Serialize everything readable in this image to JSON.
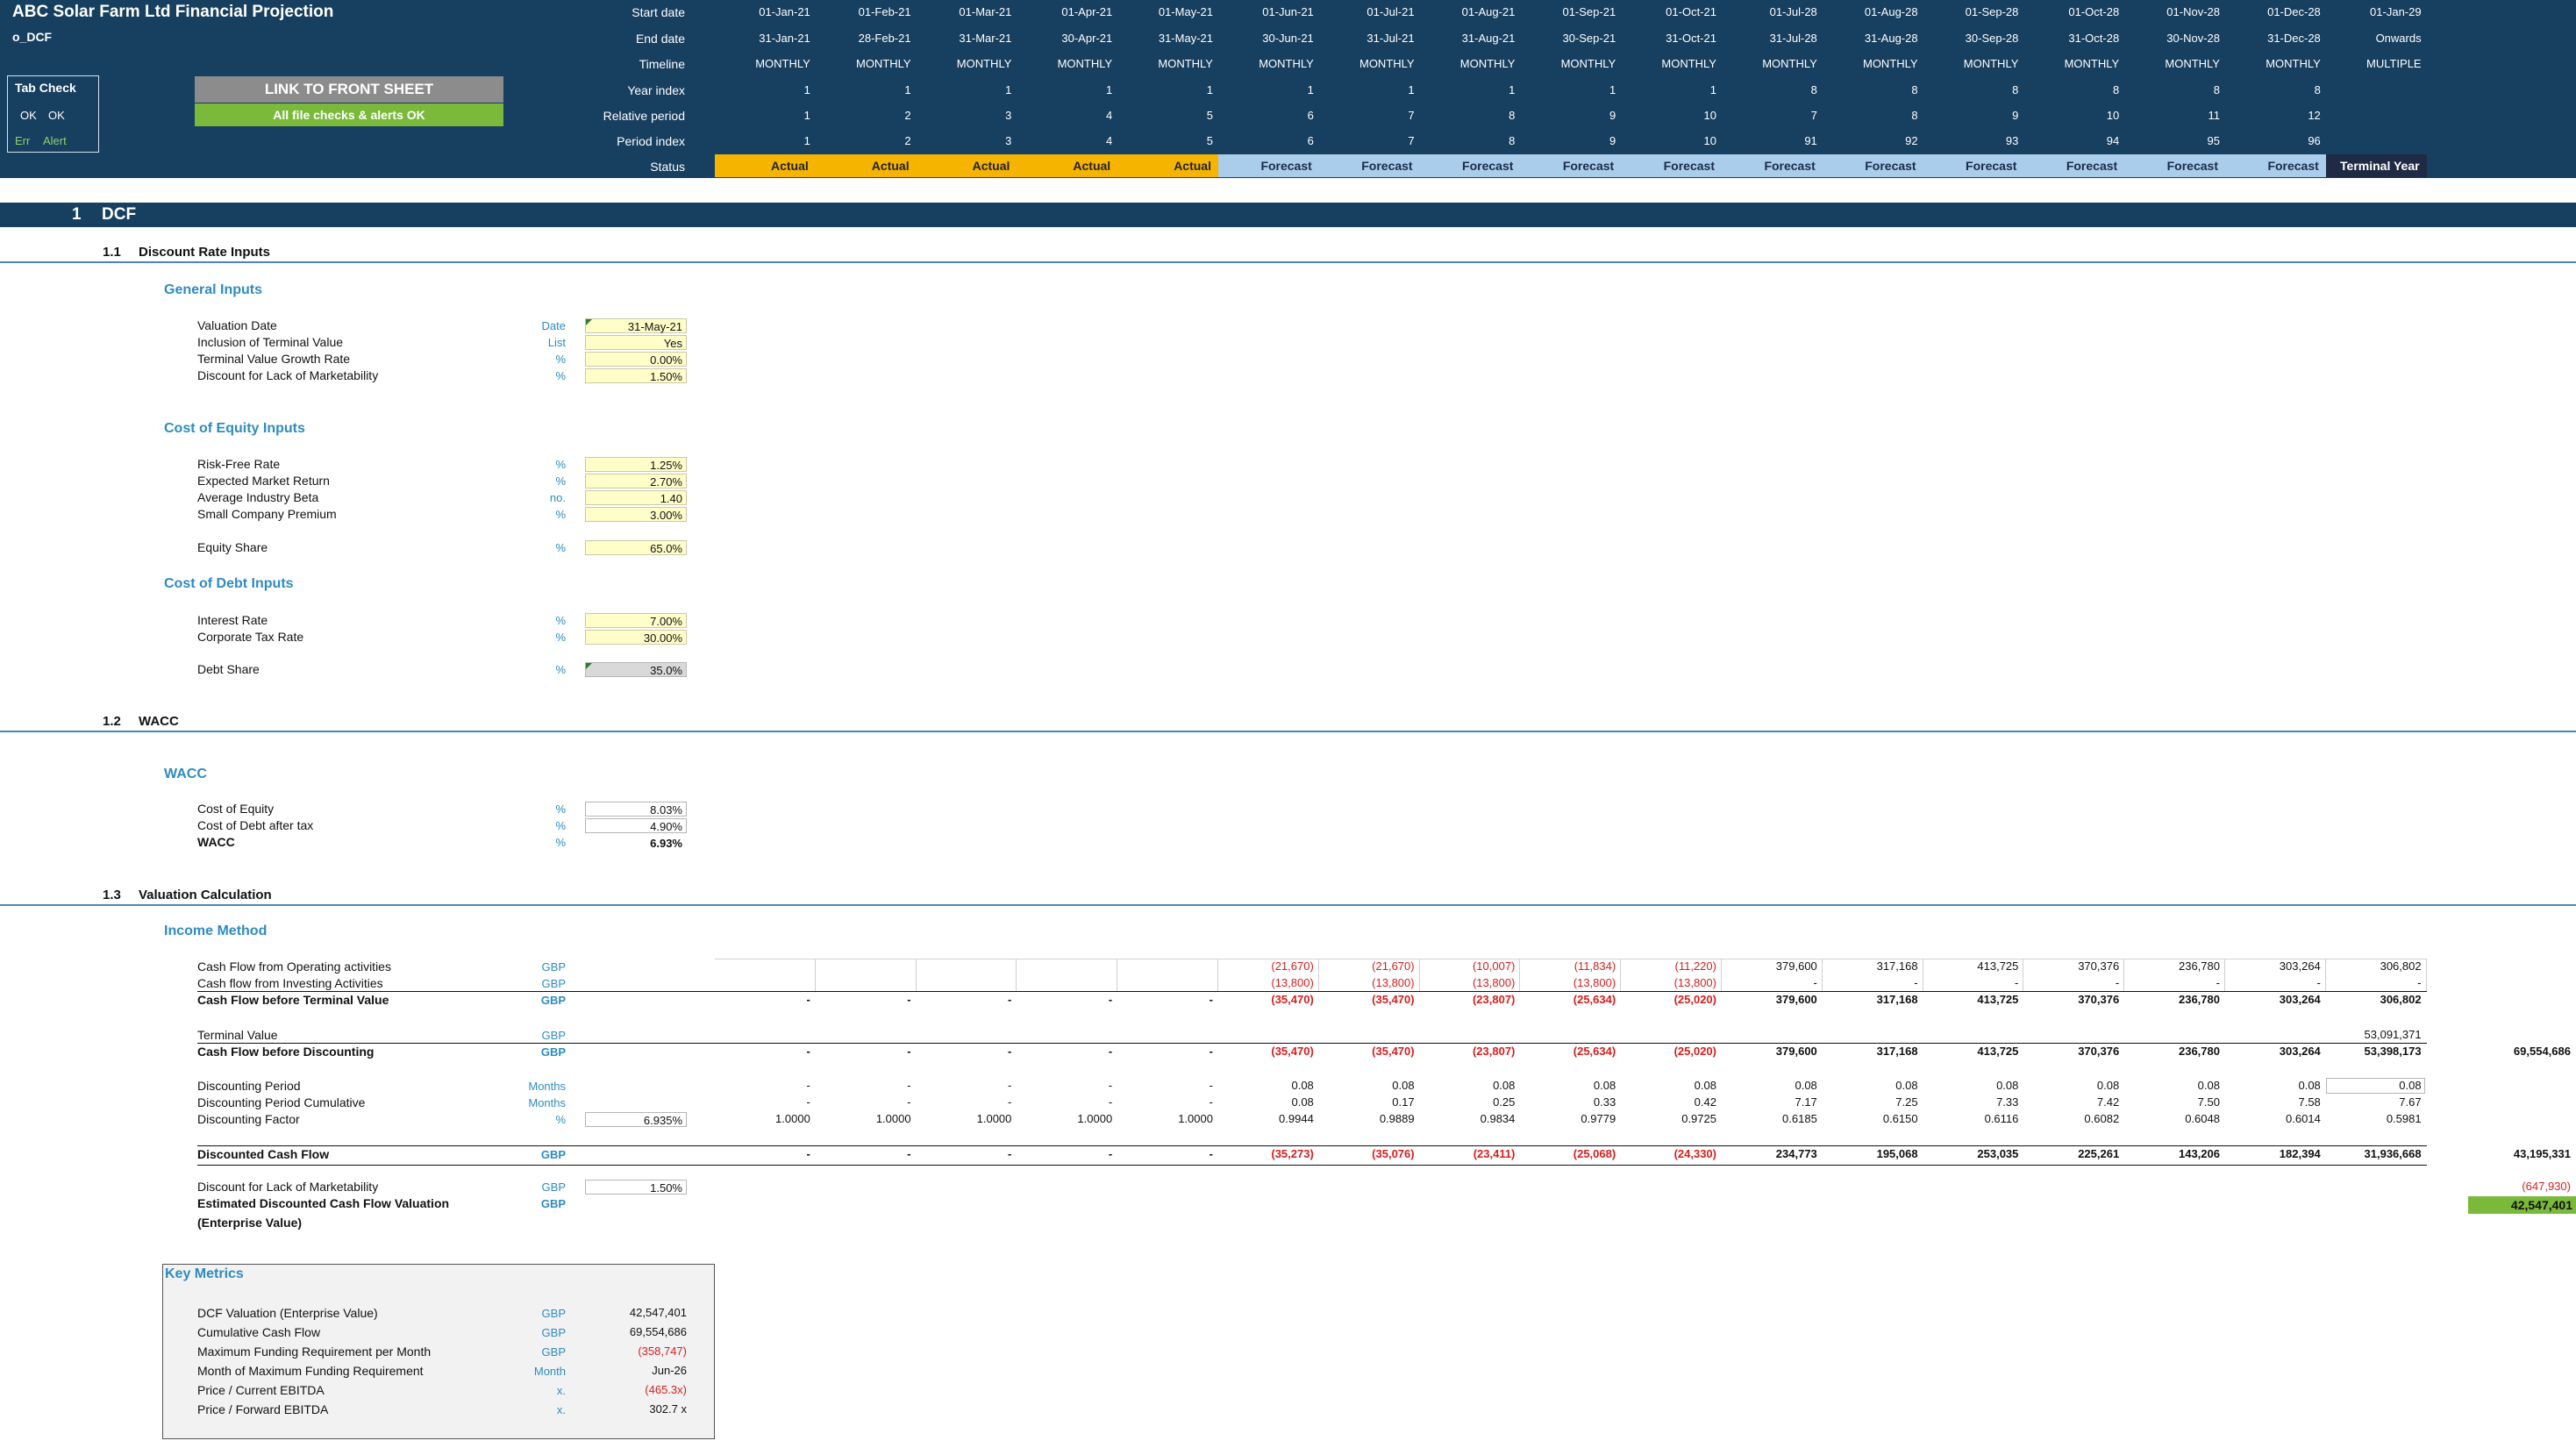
{
  "title": "ABC Solar Farm Ltd Financial Projection",
  "sheet_name": "o_DCF",
  "timeline_labels": {
    "start_date": "Start date",
    "end_date": "End date",
    "timeline": "Timeline",
    "year_index": "Year index",
    "relative_period": "Relative period",
    "period_index": "Period index",
    "status": "Status"
  },
  "columns": [
    {
      "start": "01-Jan-21",
      "end": "31-Jan-21",
      "timeline": "MONTHLY",
      "year": "1",
      "rel": "1",
      "period": "1",
      "status": "Actual"
    },
    {
      "start": "01-Feb-21",
      "end": "28-Feb-21",
      "timeline": "MONTHLY",
      "year": "1",
      "rel": "2",
      "period": "2",
      "status": "Actual"
    },
    {
      "start": "01-Mar-21",
      "end": "31-Mar-21",
      "timeline": "MONTHLY",
      "year": "1",
      "rel": "3",
      "period": "3",
      "status": "Actual"
    },
    {
      "start": "01-Apr-21",
      "end": "30-Apr-21",
      "timeline": "MONTHLY",
      "year": "1",
      "rel": "4",
      "period": "4",
      "status": "Actual"
    },
    {
      "start": "01-May-21",
      "end": "31-May-21",
      "timeline": "MONTHLY",
      "year": "1",
      "rel": "5",
      "period": "5",
      "status": "Actual"
    },
    {
      "start": "01-Jun-21",
      "end": "30-Jun-21",
      "timeline": "MONTHLY",
      "year": "1",
      "rel": "6",
      "period": "6",
      "status": "Forecast"
    },
    {
      "start": "01-Jul-21",
      "end": "31-Jul-21",
      "timeline": "MONTHLY",
      "year": "1",
      "rel": "7",
      "period": "7",
      "status": "Forecast"
    },
    {
      "start": "01-Aug-21",
      "end": "31-Aug-21",
      "timeline": "MONTHLY",
      "year": "1",
      "rel": "8",
      "period": "8",
      "status": "Forecast"
    },
    {
      "start": "01-Sep-21",
      "end": "30-Sep-21",
      "timeline": "MONTHLY",
      "year": "1",
      "rel": "9",
      "period": "9",
      "status": "Forecast"
    },
    {
      "start": "01-Oct-21",
      "end": "31-Oct-21",
      "timeline": "MONTHLY",
      "year": "1",
      "rel": "10",
      "period": "10",
      "status": "Forecast"
    },
    {
      "start": "01-Jul-28",
      "end": "31-Jul-28",
      "timeline": "MONTHLY",
      "year": "8",
      "rel": "7",
      "period": "91",
      "status": "Forecast"
    },
    {
      "start": "01-Aug-28",
      "end": "31-Aug-28",
      "timeline": "MONTHLY",
      "year": "8",
      "rel": "8",
      "period": "92",
      "status": "Forecast"
    },
    {
      "start": "01-Sep-28",
      "end": "30-Sep-28",
      "timeline": "MONTHLY",
      "year": "8",
      "rel": "9",
      "period": "93",
      "status": "Forecast"
    },
    {
      "start": "01-Oct-28",
      "end": "31-Oct-28",
      "timeline": "MONTHLY",
      "year": "8",
      "rel": "10",
      "period": "94",
      "status": "Forecast"
    },
    {
      "start": "01-Nov-28",
      "end": "30-Nov-28",
      "timeline": "MONTHLY",
      "year": "8",
      "rel": "11",
      "period": "95",
      "status": "Forecast"
    },
    {
      "start": "01-Dec-28",
      "end": "31-Dec-28",
      "timeline": "MONTHLY",
      "year": "8",
      "rel": "12",
      "period": "96",
      "status": "Forecast"
    },
    {
      "start": "01-Jan-29",
      "end": "Onwards",
      "timeline": "MULTIPLE",
      "year": "",
      "rel": "",
      "period": "",
      "status": "Terminal Year"
    }
  ],
  "tab_check": {
    "title": "Tab Check",
    "ok1": "OK",
    "ok2": "OK",
    "err": "Err",
    "alert": "Alert"
  },
  "link_button": "LINK TO FRONT SHEET",
  "checks_status": "All file checks & alerts OK",
  "section": {
    "number": "1",
    "title": "DCF"
  },
  "sub_11": {
    "number": "1.1",
    "title": "Discount Rate Inputs"
  },
  "sub_12": {
    "number": "1.2",
    "title": "WACC"
  },
  "sub_13": {
    "number": "1.3",
    "title": "Valuation Calculation"
  },
  "general_inputs": {
    "title": "General Inputs",
    "rows": [
      {
        "label": "Valuation Date",
        "unit": "Date",
        "value": "31-May-21"
      },
      {
        "label": "Inclusion of Terminal Value",
        "unit": "List",
        "value": "Yes"
      },
      {
        "label": "Terminal Value Growth Rate",
        "unit": "%",
        "value": "0.00%"
      },
      {
        "label": "Discount for Lack of Marketability",
        "unit": "%",
        "value": "1.50%"
      }
    ]
  },
  "equity_inputs": {
    "title": "Cost of Equity Inputs",
    "rows": [
      {
        "label": "Risk-Free Rate",
        "unit": "%",
        "value": "1.25%"
      },
      {
        "label": "Expected Market Return",
        "unit": "%",
        "value": "2.70%"
      },
      {
        "label": "Average Industry Beta",
        "unit": "no.",
        "value": "1.40"
      },
      {
        "label": "Small Company Premium",
        "unit": "%",
        "value": "3.00%"
      }
    ],
    "equity_share": {
      "label": "Equity Share",
      "unit": "%",
      "value": "65.0%"
    }
  },
  "debt_inputs": {
    "title": "Cost of Debt Inputs",
    "rows": [
      {
        "label": "Interest Rate",
        "unit": "%",
        "value": "7.00%"
      },
      {
        "label": "Corporate Tax Rate",
        "unit": "%",
        "value": "30.00%"
      }
    ],
    "debt_share": {
      "label": "Debt Share",
      "unit": "%",
      "value": "35.0%"
    }
  },
  "wacc": {
    "title": "WACC",
    "rows": [
      {
        "label": "Cost of Equity",
        "unit": "%",
        "value": "8.03%"
      },
      {
        "label": "Cost of Debt after tax",
        "unit": "%",
        "value": "4.90%"
      },
      {
        "label": "WACC",
        "unit": "%",
        "value": "6.93%"
      }
    ]
  },
  "income_method": {
    "title": "Income Method",
    "cfo": {
      "label": "Cash Flow from Operating activities",
      "unit": "GBP",
      "values": [
        "",
        "",
        "",
        "",
        "",
        "(21,670)",
        "(21,670)",
        "(10,007)",
        "(11,834)",
        "(11,220)",
        "379,600",
        "317,168",
        "413,725",
        "370,376",
        "236,780",
        "303,264",
        "306,802"
      ]
    },
    "cfi": {
      "label": "Cash flow from Investing Activities",
      "unit": "GBP",
      "values": [
        "",
        "",
        "",
        "",
        "",
        "(13,800)",
        "(13,800)",
        "(13,800)",
        "(13,800)",
        "(13,800)",
        "-",
        "-",
        "-",
        "-",
        "-",
        "-",
        "-"
      ]
    },
    "cfbtv": {
      "label": "Cash Flow before Terminal Value",
      "unit": "GBP",
      "values": [
        "-",
        "-",
        "-",
        "-",
        "-",
        "(35,470)",
        "(35,470)",
        "(23,807)",
        "(25,634)",
        "(25,020)",
        "379,600",
        "317,168",
        "413,725",
        "370,376",
        "236,780",
        "303,264",
        "306,802"
      ]
    },
    "tv": {
      "label": "Terminal Value",
      "unit": "GBP",
      "values": [
        "",
        "",
        "",
        "",
        "",
        "",
        "",
        "",
        "",
        "",
        "",
        "",
        "",
        "",
        "",
        "",
        "53,091,371"
      ]
    },
    "cfbd": {
      "label": "Cash Flow before Discounting",
      "unit": "GBP",
      "values": [
        "-",
        "-",
        "-",
        "-",
        "-",
        "(35,470)",
        "(35,470)",
        "(23,807)",
        "(25,634)",
        "(25,020)",
        "379,600",
        "317,168",
        "413,725",
        "370,376",
        "236,780",
        "303,264",
        "53,398,173"
      ],
      "total": "69,554,686"
    },
    "dp": {
      "label": "Discounting Period",
      "unit": "Months",
      "values": [
        "-",
        "-",
        "-",
        "-",
        "-",
        "0.08",
        "0.08",
        "0.08",
        "0.08",
        "0.08",
        "0.08",
        "0.08",
        "0.08",
        "0.08",
        "0.08",
        "0.08",
        "0.08"
      ]
    },
    "dpc": {
      "label": "Discounting Period Cumulative",
      "unit": "Months",
      "values": [
        "-",
        "-",
        "-",
        "-",
        "-",
        "0.08",
        "0.17",
        "0.25",
        "0.33",
        "0.42",
        "7.17",
        "7.25",
        "7.33",
        "7.42",
        "7.50",
        "7.58",
        "7.67"
      ]
    },
    "df": {
      "label": "Discounting Factor",
      "unit": "%",
      "input": "6.935%",
      "values": [
        "1.0000",
        "1.0000",
        "1.0000",
        "1.0000",
        "1.0000",
        "0.9944",
        "0.9889",
        "0.9834",
        "0.9779",
        "0.9725",
        "0.6185",
        "0.6150",
        "0.6116",
        "0.6082",
        "0.6048",
        "0.6014",
        "0.5981"
      ]
    },
    "dcf": {
      "label": "Discounted Cash Flow",
      "unit": "GBP",
      "values": [
        "-",
        "-",
        "-",
        "-",
        "-",
        "(35,273)",
        "(35,076)",
        "(23,411)",
        "(25,068)",
        "(24,330)",
        "234,773",
        "195,068",
        "253,035",
        "225,261",
        "143,206",
        "182,394",
        "31,936,668"
      ],
      "total": "43,195,331"
    },
    "dlm": {
      "label": "Discount for Lack of Marketability",
      "unit": "GBP",
      "input": "1.50%",
      "total": "(647,930)"
    },
    "edcf": {
      "label1": "Estimated Discounted Cash Flow Valuation",
      "label2": "(Enterprise Value)",
      "unit": "GBP",
      "total": "42,547,401"
    }
  },
  "key_metrics": {
    "title": "Key Metrics",
    "rows": [
      {
        "label": "DCF Valuation (Enterprise Value)",
        "unit": "GBP",
        "value": "42,547,401",
        "neg": false
      },
      {
        "label": "Cumulative Cash Flow",
        "unit": "GBP",
        "value": "69,554,686",
        "neg": false
      },
      {
        "label": "Maximum Funding Requirement per Month",
        "unit": "GBP",
        "value": "(358,747)",
        "neg": true
      },
      {
        "label": "Month of Maximum Funding Requirement",
        "unit": "Month",
        "value": "Jun-26",
        "neg": false
      },
      {
        "label": "Price / Current EBITDA",
        "unit": "x.",
        "value": "(465.3x)",
        "neg": true
      },
      {
        "label": "Price / Forward EBITDA",
        "unit": "x.",
        "value": "302.7 x",
        "neg": false
      }
    ]
  }
}
